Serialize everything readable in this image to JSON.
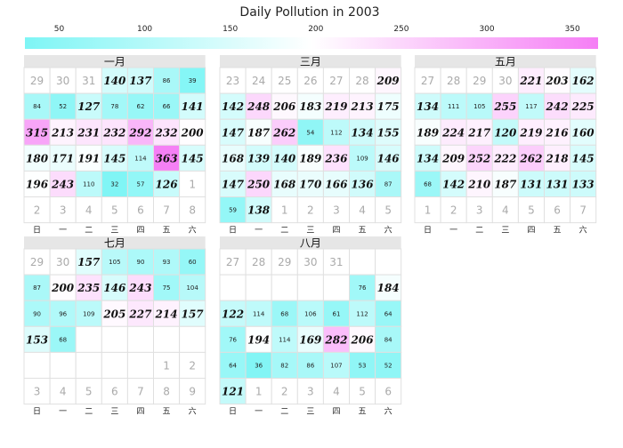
{
  "chart_data": {
    "type": "heatmap",
    "title": "Daily Pollution in 2003",
    "color_scale": {
      "min": 30,
      "max": 365,
      "ticks": [
        50,
        100,
        150,
        200,
        250,
        300,
        350
      ],
      "colors": [
        "#7ef5f5",
        "#ffffff",
        "#f57ef5"
      ]
    },
    "weekday_labels": [
      "日",
      "一",
      "二",
      "三",
      "四",
      "五",
      "六"
    ],
    "big_threshold": 120,
    "months": [
      {
        "name": "一月",
        "cells": [
          {
            "day": 29,
            "current": false
          },
          {
            "day": 30,
            "current": false
          },
          {
            "day": 31,
            "current": false
          },
          {
            "value": 140
          },
          {
            "value": 137
          },
          {
            "value": 86
          },
          {
            "value": 39
          },
          {
            "value": 84
          },
          {
            "value": 52
          },
          {
            "value": 127
          },
          {
            "value": 78
          },
          {
            "value": 62
          },
          {
            "value": 66
          },
          {
            "value": 141
          },
          {
            "value": 315
          },
          {
            "value": 213
          },
          {
            "value": 231
          },
          {
            "value": 232
          },
          {
            "value": 292
          },
          {
            "value": 232
          },
          {
            "value": 200
          },
          {
            "value": 180
          },
          {
            "value": 171
          },
          {
            "value": 191
          },
          {
            "value": 145
          },
          {
            "value": 114
          },
          {
            "value": 363
          },
          {
            "value": 145
          },
          {
            "value": 196
          },
          {
            "value": 243
          },
          {
            "value": 110
          },
          {
            "value": 32
          },
          {
            "value": 57
          },
          {
            "value": 126
          },
          {
            "day": 1,
            "current": false
          },
          {
            "day": 2,
            "current": false
          },
          {
            "day": 3,
            "current": false
          },
          {
            "day": 4,
            "current": false
          },
          {
            "day": 5,
            "current": false
          },
          {
            "day": 6,
            "current": false
          },
          {
            "day": 7,
            "current": false
          },
          {
            "day": 8,
            "current": false
          }
        ]
      },
      {
        "name": "三月",
        "cells": [
          {
            "day": 23,
            "current": false
          },
          {
            "day": 24,
            "current": false
          },
          {
            "day": 25,
            "current": false
          },
          {
            "day": 26,
            "current": false
          },
          {
            "day": 27,
            "current": false
          },
          {
            "day": 28,
            "current": false
          },
          {
            "value": 209
          },
          {
            "value": 142
          },
          {
            "value": 248
          },
          {
            "value": 206
          },
          {
            "value": 183
          },
          {
            "value": 219
          },
          {
            "value": 213
          },
          {
            "value": 175
          },
          {
            "value": 147
          },
          {
            "value": 187
          },
          {
            "value": 262
          },
          {
            "value": 54
          },
          {
            "value": 112
          },
          {
            "value": 134
          },
          {
            "value": 155
          },
          {
            "value": 168
          },
          {
            "value": 139
          },
          {
            "value": 140
          },
          {
            "value": 189
          },
          {
            "value": 236
          },
          {
            "value": 109
          },
          {
            "value": 146
          },
          {
            "value": 147
          },
          {
            "value": 250
          },
          {
            "value": 168
          },
          {
            "value": 170
          },
          {
            "value": 166
          },
          {
            "value": 136
          },
          {
            "value": 87
          },
          {
            "value": 59
          },
          {
            "value": 138
          },
          {
            "day": 1,
            "current": false
          },
          {
            "day": 2,
            "current": false
          },
          {
            "day": 3,
            "current": false
          },
          {
            "day": 4,
            "current": false
          },
          {
            "day": 5,
            "current": false
          }
        ]
      },
      {
        "name": "五月",
        "cells": [
          {
            "day": 27,
            "current": false
          },
          {
            "day": 28,
            "current": false
          },
          {
            "day": 29,
            "current": false
          },
          {
            "day": 30,
            "current": false
          },
          {
            "value": 221
          },
          {
            "value": 203
          },
          {
            "value": 162
          },
          {
            "value": 134
          },
          {
            "value": 111
          },
          {
            "value": 105
          },
          {
            "value": 255
          },
          {
            "value": 117
          },
          {
            "value": 242
          },
          {
            "value": 225
          },
          {
            "value": 189
          },
          {
            "value": 224
          },
          {
            "value": 217
          },
          {
            "value": 120
          },
          {
            "value": 219
          },
          {
            "value": 216
          },
          {
            "value": 160
          },
          {
            "value": 134
          },
          {
            "value": 209
          },
          {
            "value": 252
          },
          {
            "value": 222
          },
          {
            "value": 262
          },
          {
            "value": 218
          },
          {
            "value": 145
          },
          {
            "value": 68
          },
          {
            "value": 142
          },
          {
            "value": 210
          },
          {
            "value": 187
          },
          {
            "value": 131
          },
          {
            "value": 131
          },
          {
            "value": 133
          },
          {
            "day": 1,
            "current": false
          },
          {
            "day": 2,
            "current": false
          },
          {
            "day": 3,
            "current": false
          },
          {
            "day": 4,
            "current": false
          },
          {
            "day": 5,
            "current": false
          },
          {
            "day": 6,
            "current": false
          },
          {
            "day": 7,
            "current": false
          }
        ]
      },
      {
        "name": "七月",
        "cells": [
          {
            "day": 29,
            "current": false
          },
          {
            "day": 30,
            "current": false
          },
          {
            "value": 157
          },
          {
            "value": 105
          },
          {
            "value": 90
          },
          {
            "value": 93
          },
          {
            "value": 60
          },
          {
            "value": 87
          },
          {
            "value": 200
          },
          {
            "value": 235
          },
          {
            "value": 146
          },
          {
            "value": 243
          },
          {
            "value": 75
          },
          {
            "value": 104
          },
          {
            "value": 90
          },
          {
            "value": 96
          },
          {
            "value": 109
          },
          {
            "value": 205
          },
          {
            "value": 227
          },
          {
            "value": 214
          },
          {
            "value": 157
          },
          {
            "value": 153
          },
          {
            "value": 68
          },
          {
            "empty": true
          },
          {
            "empty": true
          },
          {
            "empty": true
          },
          {
            "empty": true
          },
          {
            "empty": true
          },
          {
            "empty": true
          },
          {
            "empty": true
          },
          {
            "empty": true
          },
          {
            "empty": true
          },
          {
            "empty": true
          },
          {
            "day": 1,
            "current": false
          },
          {
            "day": 2,
            "current": false
          },
          {
            "day": 3,
            "current": false
          },
          {
            "day": 4,
            "current": false
          },
          {
            "day": 5,
            "current": false
          },
          {
            "day": 6,
            "current": false
          },
          {
            "day": 7,
            "current": false
          },
          {
            "day": 8,
            "current": false
          },
          {
            "day": 9,
            "current": false
          }
        ]
      },
      {
        "name": "八月",
        "cells": [
          {
            "day": 27,
            "current": false
          },
          {
            "day": 28,
            "current": false
          },
          {
            "day": 29,
            "current": false
          },
          {
            "day": 30,
            "current": false
          },
          {
            "day": 31,
            "current": false
          },
          {
            "empty": true
          },
          {
            "empty": true
          },
          {
            "empty": true
          },
          {
            "empty": true
          },
          {
            "empty": true
          },
          {
            "empty": true
          },
          {
            "empty": true
          },
          {
            "value": 76
          },
          {
            "value": 184
          },
          {
            "value": 122
          },
          {
            "value": 114
          },
          {
            "value": 68
          },
          {
            "value": 106
          },
          {
            "value": 61
          },
          {
            "value": 112
          },
          {
            "value": 64
          },
          {
            "value": 76
          },
          {
            "value": 194
          },
          {
            "value": 114
          },
          {
            "value": 169
          },
          {
            "value": 282
          },
          {
            "value": 206
          },
          {
            "value": 84
          },
          {
            "value": 64
          },
          {
            "value": 36
          },
          {
            "value": 82
          },
          {
            "value": 86
          },
          {
            "value": 107
          },
          {
            "value": 53
          },
          {
            "value": 52
          },
          {
            "value": 121
          },
          {
            "day": 1,
            "current": false
          },
          {
            "day": 2,
            "current": false
          },
          {
            "day": 3,
            "current": false
          },
          {
            "day": 4,
            "current": false
          },
          {
            "day": 5,
            "current": false
          },
          {
            "day": 6,
            "current": false
          }
        ]
      }
    ]
  }
}
